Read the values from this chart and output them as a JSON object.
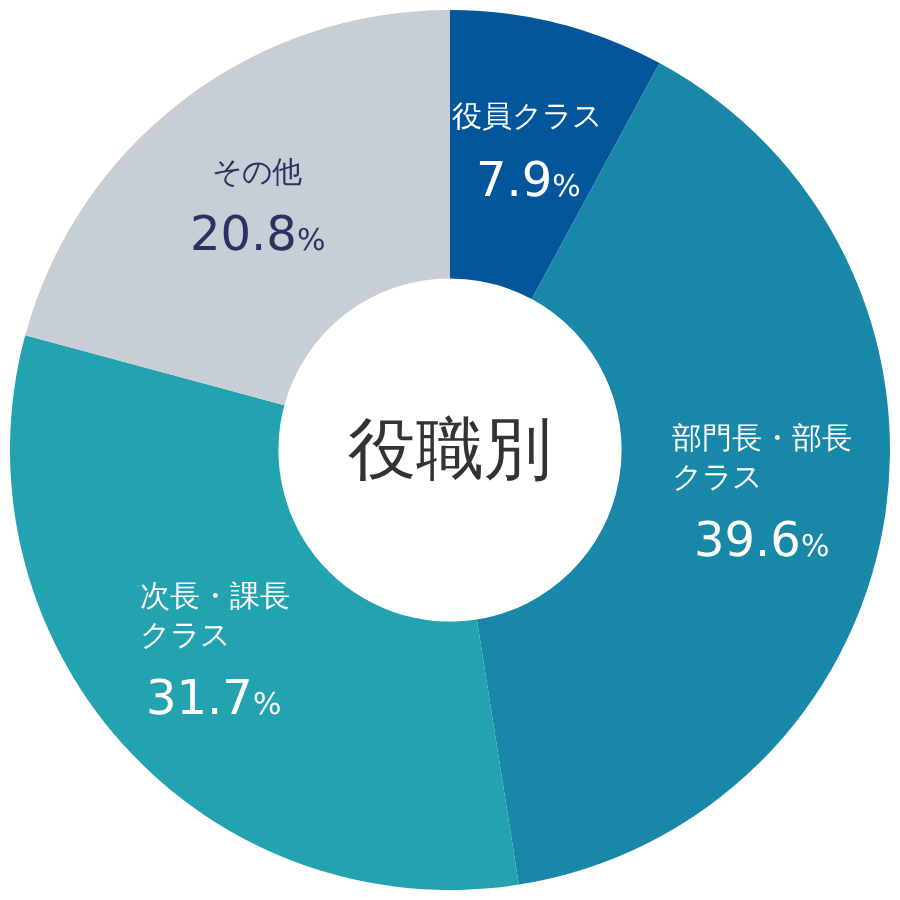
{
  "chart_data": {
    "type": "donut",
    "title": "役職別",
    "categories": [
      "役員クラス",
      "部門長・部長クラス",
      "次長・課長クラス",
      "その他"
    ],
    "values": [
      7.9,
      39.6,
      31.7,
      20.8
    ],
    "colors": [
      "#03569a",
      "#1988a8",
      "#22a3af",
      "#c8ced5"
    ],
    "value_labels": [
      "7.9%",
      "39.6%",
      "31.7%",
      "20.8%"
    ],
    "legend": false
  }
}
